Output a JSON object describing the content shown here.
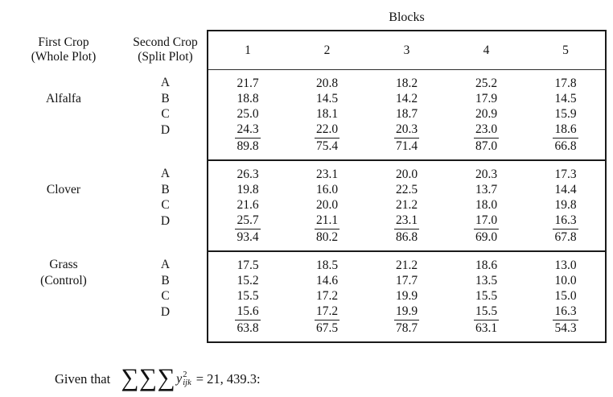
{
  "blocks_title": "Blocks",
  "headers": {
    "first_crop_line1": "First Crop",
    "first_crop_line2": "(Whole Plot)",
    "second_crop_line1": "Second Crop",
    "second_crop_line2": "(Split Plot)",
    "blocks": [
      "1",
      "2",
      "3",
      "4",
      "5"
    ]
  },
  "groups": [
    {
      "crop_label": {
        "row_a": "",
        "row_b": "Alfalfa"
      },
      "rows": [
        {
          "label": "A",
          "values": [
            "21.7",
            "20.8",
            "18.2",
            "25.2",
            "17.8"
          ]
        },
        {
          "label": "B",
          "values": [
            "18.8",
            "14.5",
            "14.2",
            "17.9",
            "14.5"
          ]
        },
        {
          "label": "C",
          "values": [
            "25.0",
            "18.1",
            "18.7",
            "20.9",
            "15.9"
          ]
        },
        {
          "label": "D",
          "values": [
            "24.3",
            "22.0",
            "20.3",
            "23.0",
            "18.6"
          ]
        }
      ],
      "totals": [
        "89.8",
        "75.4",
        "71.4",
        "87.0",
        "66.8"
      ]
    },
    {
      "crop_label": {
        "row_a": "",
        "row_b": "Clover"
      },
      "rows": [
        {
          "label": "A",
          "values": [
            "26.3",
            "23.1",
            "20.0",
            "20.3",
            "17.3"
          ]
        },
        {
          "label": "B",
          "values": [
            "19.8",
            "16.0",
            "22.5",
            "13.7",
            "14.4"
          ]
        },
        {
          "label": "C",
          "values": [
            "21.6",
            "20.0",
            "21.2",
            "18.0",
            "19.8"
          ]
        },
        {
          "label": "D",
          "values": [
            "25.7",
            "21.1",
            "23.1",
            "17.0",
            "16.3"
          ]
        }
      ],
      "totals": [
        "93.4",
        "80.2",
        "86.8",
        "69.0",
        "67.8"
      ]
    },
    {
      "crop_label": {
        "row_a": "Grass",
        "row_b": "(Control)"
      },
      "rows": [
        {
          "label": "A",
          "values": [
            "17.5",
            "18.5",
            "21.2",
            "18.6",
            "13.0"
          ]
        },
        {
          "label": "B",
          "values": [
            "15.2",
            "14.6",
            "17.7",
            "13.5",
            "10.0"
          ]
        },
        {
          "label": "C",
          "values": [
            "15.5",
            "17.2",
            "19.9",
            "15.5",
            "15.0"
          ]
        },
        {
          "label": "D",
          "values": [
            "15.6",
            "17.2",
            "19.9",
            "15.5",
            "16.3"
          ]
        }
      ],
      "totals": [
        "63.8",
        "67.5",
        "78.7",
        "63.1",
        "54.3"
      ]
    }
  ],
  "footer": {
    "given_text": "Given that ",
    "sigma": "∑∑∑",
    "y_symbol": "y",
    "superscript": "2",
    "subscript": "ijk",
    "equation_rhs": "= 21, 439.3:"
  }
}
